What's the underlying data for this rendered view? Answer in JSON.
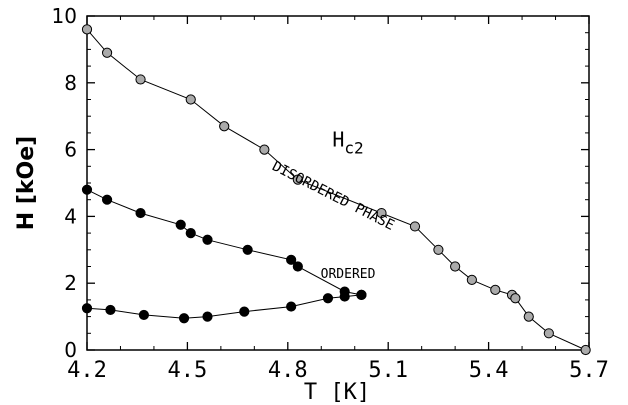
{
  "chart_data": {
    "type": "scatter",
    "xlabel": "T [K]",
    "ylabel": "H [kOe]",
    "xlim": [
      4.2,
      5.7
    ],
    "ylim": [
      0,
      10
    ],
    "x_ticks": [
      "4.2",
      "4.5",
      "4.8",
      "5.1",
      "5.4",
      "5.7"
    ],
    "y_ticks": [
      "0",
      "2",
      "4",
      "6",
      "8",
      "10"
    ],
    "grid": false,
    "series": [
      {
        "marker_color": "#aaaaaa",
        "points": [
          {
            "x": 4.2,
            "y": 9.6
          },
          {
            "x": 4.26,
            "y": 8.9
          },
          {
            "x": 4.36,
            "y": 8.1
          },
          {
            "x": 4.51,
            "y": 7.5
          },
          {
            "x": 4.61,
            "y": 6.7
          },
          {
            "x": 4.73,
            "y": 6.0
          },
          {
            "x": 4.83,
            "y": 5.1
          },
          {
            "x": 5.08,
            "y": 4.1
          },
          {
            "x": 5.18,
            "y": 3.7
          },
          {
            "x": 5.25,
            "y": 3.0
          },
          {
            "x": 5.3,
            "y": 2.5
          },
          {
            "x": 5.35,
            "y": 2.1
          },
          {
            "x": 5.42,
            "y": 1.8
          },
          {
            "x": 5.47,
            "y": 1.65
          },
          {
            "x": 5.48,
            "y": 1.55
          },
          {
            "x": 5.52,
            "y": 1.0
          },
          {
            "x": 5.58,
            "y": 0.5
          },
          {
            "x": 5.69,
            "y": 0.0
          }
        ]
      },
      {
        "marker_color": "#000000",
        "points": [
          {
            "x": 4.2,
            "y": 4.8
          },
          {
            "x": 4.26,
            "y": 4.5
          },
          {
            "x": 4.36,
            "y": 4.1
          },
          {
            "x": 4.48,
            "y": 3.75
          },
          {
            "x": 4.51,
            "y": 3.5
          },
          {
            "x": 4.56,
            "y": 3.3
          },
          {
            "x": 4.68,
            "y": 3.0
          },
          {
            "x": 4.81,
            "y": 2.7
          },
          {
            "x": 4.83,
            "y": 2.5
          },
          {
            "x": 4.97,
            "y": 1.75
          },
          {
            "x": 5.02,
            "y": 1.65
          }
        ]
      },
      {
        "marker_color": "#000000",
        "points": [
          {
            "x": 4.2,
            "y": 1.25
          },
          {
            "x": 4.27,
            "y": 1.2
          },
          {
            "x": 4.37,
            "y": 1.05
          },
          {
            "x": 4.49,
            "y": 0.95
          },
          {
            "x": 4.56,
            "y": 1.0
          },
          {
            "x": 4.67,
            "y": 1.15
          },
          {
            "x": 4.81,
            "y": 1.3
          },
          {
            "x": 4.92,
            "y": 1.55
          },
          {
            "x": 4.97,
            "y": 1.6
          },
          {
            "x": 5.02,
            "y": 1.65
          }
        ]
      }
    ],
    "annotations": [
      {
        "text": "H",
        "sub": "c2",
        "x": 4.98,
        "y": 6.1,
        "size": 20,
        "rotate": 0
      },
      {
        "text": "DISORDERED PHASE",
        "x": 4.93,
        "y": 4.5,
        "size": 14,
        "rotate": 27
      },
      {
        "text": "ORDERED",
        "x": 4.98,
        "y": 2.15,
        "size": 13,
        "rotate": 0
      }
    ]
  }
}
